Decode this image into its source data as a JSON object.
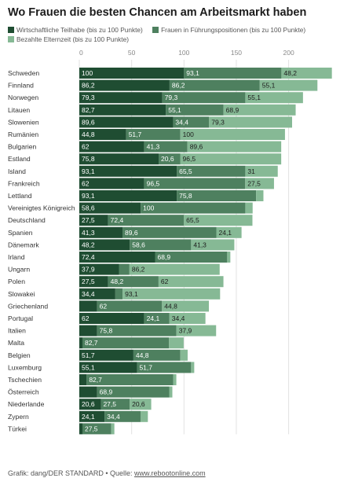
{
  "title": "Wo Frauen die besten Chancen am Arbeitsmarkt haben",
  "legend": [
    {
      "label": "Wirtschaftliche Teilhabe (bis zu 100 Punkte)",
      "color": "#1f4d32"
    },
    {
      "label": "Frauen in Führungspositionen (bis zu 100 Punkte)",
      "color": "#4e805f"
    },
    {
      "label": "Bezahlte Elternzeit (bis zu 100 Punkte)",
      "color": "#86b995"
    }
  ],
  "footer": {
    "prefix": "Grafik: dang/DER STANDARD • Quelle: ",
    "link": "www.rebootonline.com"
  },
  "chart_data": {
    "type": "bar",
    "stacked": true,
    "orientation": "horizontal",
    "xticks": [
      0,
      50,
      100,
      150,
      200
    ],
    "xlim": [
      0,
      240
    ],
    "categories": [
      "Schweden",
      "Finnland",
      "Norwegen",
      "Litauen",
      "Slowenien",
      "Rumänien",
      "Bulgarien",
      "Estland",
      "Island",
      "Frankreich",
      "Lettland",
      "Vereinigtes Königreich",
      "Deutschland",
      "Spanien",
      "Dänemark",
      "Irland",
      "Ungarn",
      "Polen",
      "Slowakei",
      "Griechenland",
      "Portugal",
      "Italien",
      "Malta",
      "Belgien",
      "Luxemburg",
      "Tschechien",
      "Österreich",
      "Niederlande",
      "Zypern",
      "Türkei"
    ],
    "series": [
      {
        "name": "Wirtschaftliche Teilhabe (bis zu 100 Punkte)",
        "color": "#1f4d32",
        "values": [
          100,
          86.2,
          79.3,
          82.7,
          89.6,
          44.8,
          62,
          75.8,
          93.1,
          62,
          93.1,
          58.6,
          27.5,
          41.3,
          48.2,
          72.4,
          37.9,
          27.5,
          34.4,
          17,
          62,
          17,
          3,
          51.7,
          55.1,
          7,
          17,
          20.6,
          24.1,
          3
        ]
      },
      {
        "name": "Frauen in Führungspositionen (bis zu 100 Punkte)",
        "color": "#4e805f",
        "values": [
          93.1,
          86.2,
          79.3,
          55.1,
          34.4,
          51.7,
          41.3,
          20.6,
          65.5,
          96.5,
          75.8,
          100,
          72.4,
          89.6,
          58.6,
          68.9,
          10,
          48.2,
          7,
          62,
          24.1,
          75.8,
          82.7,
          44.8,
          51.7,
          82.7,
          68.9,
          27.5,
          34.4,
          27.5
        ]
      },
      {
        "name": "Bezahlte Elternzeit (bis zu 100 Punkte)",
        "color": "#86b995",
        "values": [
          48.2,
          55.1,
          55.1,
          68.9,
          79.3,
          100,
          89.6,
          96.5,
          31,
          27.5,
          7,
          7,
          65.5,
          24.1,
          41.3,
          3,
          86.2,
          62,
          93.1,
          44.8,
          34.4,
          37.9,
          14,
          7,
          3,
          3,
          3,
          20.6,
          7,
          3
        ]
      }
    ],
    "labels": [
      [
        "100",
        "93,1",
        "48,2"
      ],
      [
        "86,2",
        "86,2",
        "55,1"
      ],
      [
        "79,3",
        "79,3",
        "55,1"
      ],
      [
        "82,7",
        "55,1",
        "68,9"
      ],
      [
        "89,6",
        "34,4",
        "79,3"
      ],
      [
        "44,8",
        "51,7",
        "100"
      ],
      [
        "62",
        "41,3",
        "89,6"
      ],
      [
        "75,8",
        "20,6",
        "96,5"
      ],
      [
        "93,1",
        "65,5",
        "31"
      ],
      [
        "62",
        "96,5",
        "27,5"
      ],
      [
        "93,1",
        "75,8",
        ""
      ],
      [
        "58,6",
        "100",
        ""
      ],
      [
        "27,5",
        "72,4",
        "65,5"
      ],
      [
        "41,3",
        "89,6",
        "24,1"
      ],
      [
        "48,2",
        "58,6",
        "41,3"
      ],
      [
        "72,4",
        "68,9",
        ""
      ],
      [
        "37,9",
        "",
        "86,2"
      ],
      [
        "27,5",
        "48,2",
        "62"
      ],
      [
        "34,4",
        "",
        "93,1"
      ],
      [
        "",
        "62",
        "44,8"
      ],
      [
        "62",
        "24,1",
        "34,4"
      ],
      [
        "",
        "75,8",
        "37,9"
      ],
      [
        "",
        "82,7",
        ""
      ],
      [
        "51,7",
        "44,8",
        ""
      ],
      [
        "55,1",
        "51,7",
        ""
      ],
      [
        "",
        "82,7",
        ""
      ],
      [
        "",
        "68,9",
        ""
      ],
      [
        "20,6",
        "27,5",
        "20,6"
      ],
      [
        "24,1",
        "34,4",
        ""
      ],
      [
        "",
        "27,5",
        ""
      ]
    ],
    "legend_position": "top",
    "grid": true
  }
}
